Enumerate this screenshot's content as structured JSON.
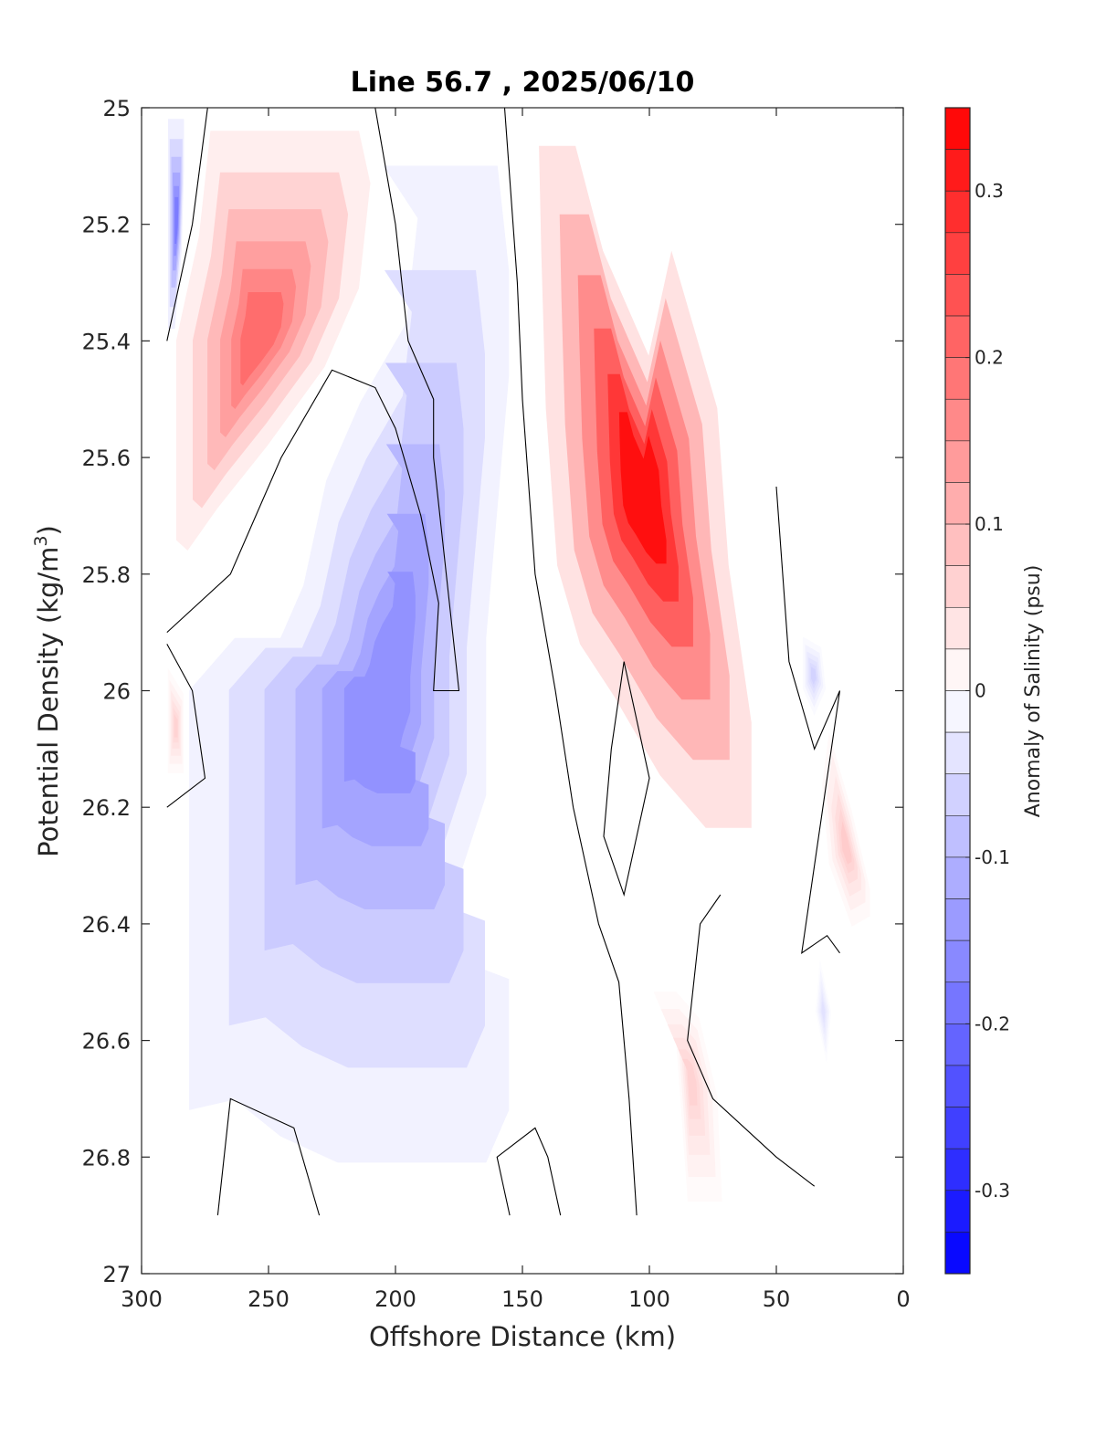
{
  "chart_data": {
    "type": "heatmap",
    "title": "Line 56.7 , 2025/06/10",
    "xlabel": "Offshore Distance (km)",
    "ylabel": "Potential Density (kg/m",
    "ylabel_sup": "3",
    "ylabel_close": ")",
    "xlim": [
      300,
      0
    ],
    "ylim": [
      25,
      27
    ],
    "x_ticks": [
      300,
      250,
      200,
      150,
      100,
      50,
      0
    ],
    "x_tick_labels": [
      "300",
      "250",
      "200",
      "150",
      "100",
      "50",
      "0"
    ],
    "y_ticks": [
      25,
      25.2,
      25.4,
      25.6,
      25.8,
      26,
      26.2,
      26.4,
      26.6,
      26.8,
      27
    ],
    "y_tick_labels": [
      "25",
      "25.2",
      "25.4",
      "25.6",
      "25.8",
      "26",
      "26.2",
      "26.4",
      "26.6",
      "26.8",
      "27"
    ],
    "data_extent": {
      "x": [
        290,
        5
      ],
      "y": [
        25,
        26.9
      ]
    },
    "colorbar": {
      "label": "Anomaly of Salinity (psu)",
      "clim": [
        -0.35,
        0.35
      ],
      "step": 0.025,
      "ticks": [
        0.3,
        0.2,
        0.1,
        0,
        -0.1,
        -0.2,
        -0.3
      ],
      "tick_labels": [
        "0.3",
        "0.2",
        "0.1",
        "0",
        "-0.1",
        "-0.2",
        "-0.3"
      ],
      "neg_color": "#0000ff",
      "pos_color": "#ff0000",
      "mid_color": "#ffffff"
    },
    "regions": [
      {
        "sign": "neg",
        "peak": 0.18,
        "points": [
          [
            290,
            25
          ],
          [
            283,
            25
          ],
          [
            283,
            25.1
          ],
          [
            284,
            25.25
          ],
          [
            287,
            25.4
          ],
          [
            290,
            25.4
          ]
        ]
      },
      {
        "sign": "pos",
        "peak": 0.2,
        "points": [
          [
            275,
            25
          ],
          [
            210,
            25
          ],
          [
            205,
            25.1
          ],
          [
            210,
            25.3
          ],
          [
            225,
            25.45
          ],
          [
            250,
            25.6
          ],
          [
            272,
            25.72
          ],
          [
            285,
            25.8
          ],
          [
            290,
            25.78
          ],
          [
            290,
            25.4
          ],
          [
            280,
            25.2
          ]
        ]
      },
      {
        "sign": "neg",
        "peak": 0.15,
        "points": [
          [
            205,
            25
          ],
          [
            155,
            25
          ],
          [
            150,
            25.2
          ],
          [
            150,
            25.4
          ],
          [
            155,
            25.65
          ],
          [
            160,
            25.9
          ],
          [
            160,
            26.2
          ],
          [
            175,
            26.4
          ],
          [
            180,
            26.5
          ],
          [
            150,
            26.55
          ],
          [
            150,
            26.8
          ],
          [
            160,
            26.9
          ],
          [
            225,
            26.9
          ],
          [
            250,
            26.85
          ],
          [
            270,
            26.78
          ],
          [
            290,
            26.8
          ],
          [
            290,
            26
          ],
          [
            270,
            25.9
          ],
          [
            250,
            25.9
          ],
          [
            240,
            25.8
          ],
          [
            230,
            25.6
          ],
          [
            215,
            25.45
          ],
          [
            195,
            25.3
          ],
          [
            190,
            25.1
          ]
        ]
      },
      {
        "sign": "pos",
        "peak": 0.33,
        "points": [
          [
            148,
            25
          ],
          [
            132,
            25
          ],
          [
            120,
            25.2
          ],
          [
            110,
            25.3
          ],
          [
            100,
            25.4
          ],
          [
            90,
            25.2
          ],
          [
            70,
            25.5
          ],
          [
            65,
            25.8
          ],
          [
            60,
            25.95
          ],
          [
            55,
            26.1
          ],
          [
            55,
            26.3
          ],
          [
            75,
            26.3
          ],
          [
            95,
            26.2
          ],
          [
            115,
            26.05
          ],
          [
            130,
            25.95
          ],
          [
            140,
            25.8
          ],
          [
            145,
            25.5
          ],
          [
            147,
            25.2
          ]
        ]
      },
      {
        "sign": "pos",
        "peak": 0.07,
        "points": [
          [
            30,
            26.05
          ],
          [
            20,
            26.2
          ],
          [
            12,
            26.35
          ],
          [
            12,
            26.4
          ],
          [
            20,
            26.42
          ],
          [
            30,
            26.3
          ],
          [
            33,
            26.15
          ]
        ]
      },
      {
        "sign": "pos",
        "peak": 0.06,
        "points": [
          [
            100,
            26.5
          ],
          [
            90,
            26.6
          ],
          [
            85,
            26.9
          ],
          [
            70,
            26.9
          ],
          [
            72,
            26.7
          ],
          [
            80,
            26.55
          ],
          [
            90,
            26.5
          ]
        ]
      },
      {
        "sign": "pos",
        "peak": 0.06,
        "points": [
          [
            290,
            25.95
          ],
          [
            283,
            26
          ],
          [
            283,
            26.15
          ],
          [
            290,
            26.15
          ]
        ]
      },
      {
        "sign": "neg",
        "peak": 0.06,
        "points": [
          [
            40,
            25.9
          ],
          [
            32,
            25.92
          ],
          [
            30,
            26
          ],
          [
            35,
            26.05
          ],
          [
            40,
            26
          ]
        ]
      },
      {
        "sign": "neg",
        "peak": 0.04,
        "points": [
          [
            33,
            26.45
          ],
          [
            28,
            26.55
          ],
          [
            30,
            26.65
          ],
          [
            35,
            26.55
          ]
        ]
      }
    ],
    "zero_contours": [
      [
        [
          274,
          25
        ],
        [
          280,
          25.2
        ],
        [
          290,
          25.4
        ]
      ],
      [
        [
          208,
          25
        ],
        [
          200,
          25.2
        ],
        [
          195,
          25.4
        ],
        [
          185,
          25.5
        ],
        [
          185,
          25.6
        ],
        [
          180,
          25.8
        ],
        [
          175,
          26
        ],
        [
          185,
          26
        ],
        [
          183,
          25.85
        ],
        [
          190,
          25.7
        ],
        [
          200,
          25.55
        ],
        [
          208,
          25.48
        ],
        [
          225,
          25.45
        ],
        [
          245,
          25.6
        ],
        [
          255,
          25.7
        ],
        [
          265,
          25.8
        ],
        [
          290,
          25.9
        ]
      ],
      [
        [
          290,
          25.92
        ],
        [
          280,
          26
        ],
        [
          275,
          26.15
        ],
        [
          290,
          26.2
        ]
      ],
      [
        [
          157,
          25
        ],
        [
          152,
          25.3
        ],
        [
          150,
          25.5
        ],
        [
          145,
          25.8
        ],
        [
          137,
          26
        ],
        [
          130,
          26.2
        ],
        [
          120,
          26.4
        ],
        [
          112,
          26.5
        ],
        [
          108,
          26.7
        ],
        [
          105,
          26.9
        ]
      ],
      [
        [
          110,
          25.95
        ],
        [
          100,
          26.15
        ],
        [
          110,
          26.35
        ],
        [
          118,
          26.25
        ],
        [
          115,
          26.1
        ],
        [
          110,
          25.95
        ]
      ],
      [
        [
          135,
          26.9
        ],
        [
          140,
          26.8
        ],
        [
          145,
          26.75
        ],
        [
          160,
          26.8
        ],
        [
          155,
          26.9
        ]
      ],
      [
        [
          72,
          26.35
        ],
        [
          80,
          26.4
        ],
        [
          85,
          26.6
        ],
        [
          75,
          26.7
        ],
        [
          50,
          26.8
        ],
        [
          35,
          26.85
        ]
      ],
      [
        [
          50,
          25.65
        ],
        [
          45,
          25.95
        ],
        [
          35,
          26.1
        ],
        [
          25,
          26
        ],
        [
          35,
          26.3
        ],
        [
          40,
          26.45
        ],
        [
          30,
          26.42
        ],
        [
          25,
          26.45
        ]
      ],
      [
        [
          270,
          26.9
        ],
        [
          265,
          26.7
        ],
        [
          240,
          26.75
        ],
        [
          230,
          26.9
        ]
      ]
    ]
  }
}
